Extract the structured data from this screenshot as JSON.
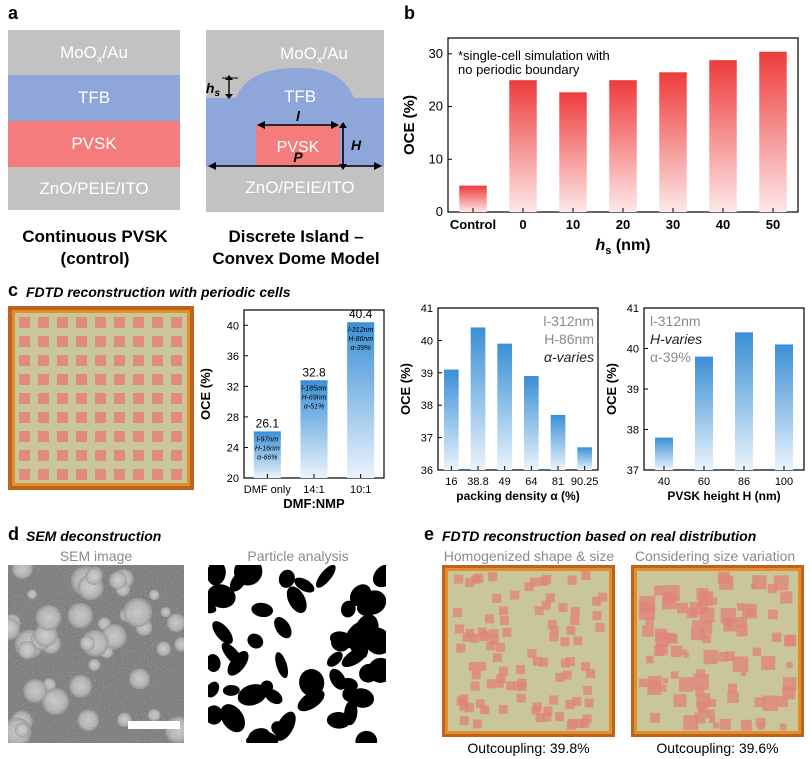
{
  "panels": {
    "a": {
      "letter": "a",
      "left_stack": {
        "top": "MoOx/Au",
        "top_main": "MoO",
        "top_sub": "x",
        "top_tail": "/Au",
        "tfb": "TFB",
        "pvsk": "PVSK",
        "bottom": "ZnO/PEIE/ITO"
      },
      "right_stack": {
        "top_main": "MoO",
        "top_sub": "x",
        "top_tail": "/Au",
        "tfb": "TFB",
        "pvsk": "PVSK",
        "bottom": "ZnO/PEIE/ITO",
        "hs_main": "h",
        "hs_sub": "s",
        "l": "l",
        "H": "H",
        "P": "P"
      },
      "caption_left": [
        "Continuous PVSK",
        "(control)"
      ],
      "caption_right": [
        "Discrete Island –",
        "Convex Dome Model"
      ],
      "colors": {
        "gray": "#c2c2c2",
        "tfb": "#8ea6d9",
        "pvsk": "#f47c7c",
        "text": "#ffffff"
      }
    },
    "b": {
      "letter": "b"
    },
    "c": {
      "letter": "c",
      "title": "FDTD reconstruction with periodic cells"
    },
    "d": {
      "letter": "d",
      "title": "SEM deconstruction",
      "sem_label": "SEM image",
      "particle_label": "Particle analysis"
    },
    "e": {
      "letter": "e",
      "title": "FDTD reconstruction based on real distribution",
      "left_label": "Homogenized shape & size",
      "right_label": "Considering size variation",
      "left_result": "Outcoupling: 39.8%",
      "right_result": "Outcoupling: 39.6%"
    }
  },
  "chart_data": [
    {
      "id": "b",
      "type": "bar",
      "categories": [
        "Control",
        "0",
        "10",
        "20",
        "30",
        "40",
        "50"
      ],
      "values": [
        5,
        25,
        22.7,
        25,
        26.5,
        28.8,
        30.4
      ],
      "xlabel_main": "h",
      "xlabel_sub": "s",
      "xlabel_tail": " (nm)",
      "ylabel": "OCE (%)",
      "ylim": [
        0,
        33
      ],
      "yticks": [
        0,
        10,
        20,
        30
      ],
      "annotation": [
        "*single-cell simulation with",
        "no periodic boundary"
      ],
      "color": "#ee3b3b"
    },
    {
      "id": "c1",
      "type": "bar",
      "categories": [
        "DMF only",
        "14:1",
        "10:1"
      ],
      "values": [
        26.1,
        32.8,
        40.4
      ],
      "value_labels": [
        "26.1",
        "32.8",
        "40.4"
      ],
      "inner_labels": [
        [
          "l-97nm",
          "H-16nm",
          "α-66%"
        ],
        [
          "l-185nm",
          "H-69nm",
          "α-51%"
        ],
        [
          "l-312nm",
          "H-86nm",
          "α-39%"
        ]
      ],
      "xlabel": "DMF:NMP",
      "ylabel": "OCE (%)",
      "ylim": [
        20,
        42
      ],
      "yticks": [
        20,
        24,
        28,
        32,
        36,
        40
      ],
      "color": "#3a8fd6"
    },
    {
      "id": "c2",
      "type": "bar",
      "categories": [
        "16",
        "38.8",
        "49",
        "64",
        "81",
        "90.25"
      ],
      "values": [
        39.1,
        40.4,
        39.9,
        38.9,
        37.7,
        36.7
      ],
      "xlabel": "packing density α (%)",
      "ylabel": "OCE (%)",
      "ylim": [
        36,
        41
      ],
      "yticks": [
        36,
        37,
        38,
        39,
        40,
        41
      ],
      "legend": [
        "l-312nm",
        "H-86nm",
        "α-varies"
      ],
      "color": "#3a8fd6"
    },
    {
      "id": "c3",
      "type": "bar",
      "categories": [
        "40",
        "60",
        "86",
        "100"
      ],
      "values": [
        37.8,
        39.8,
        40.4,
        40.1
      ],
      "xlabel": "PVSK height H (nm)",
      "ylabel": "OCE (%)",
      "ylim": [
        37,
        41
      ],
      "yticks": [
        37,
        38,
        39,
        40,
        41
      ],
      "legend": [
        "l-312nm",
        "H-varies",
        "α-39%"
      ],
      "color": "#3a8fd6"
    }
  ]
}
